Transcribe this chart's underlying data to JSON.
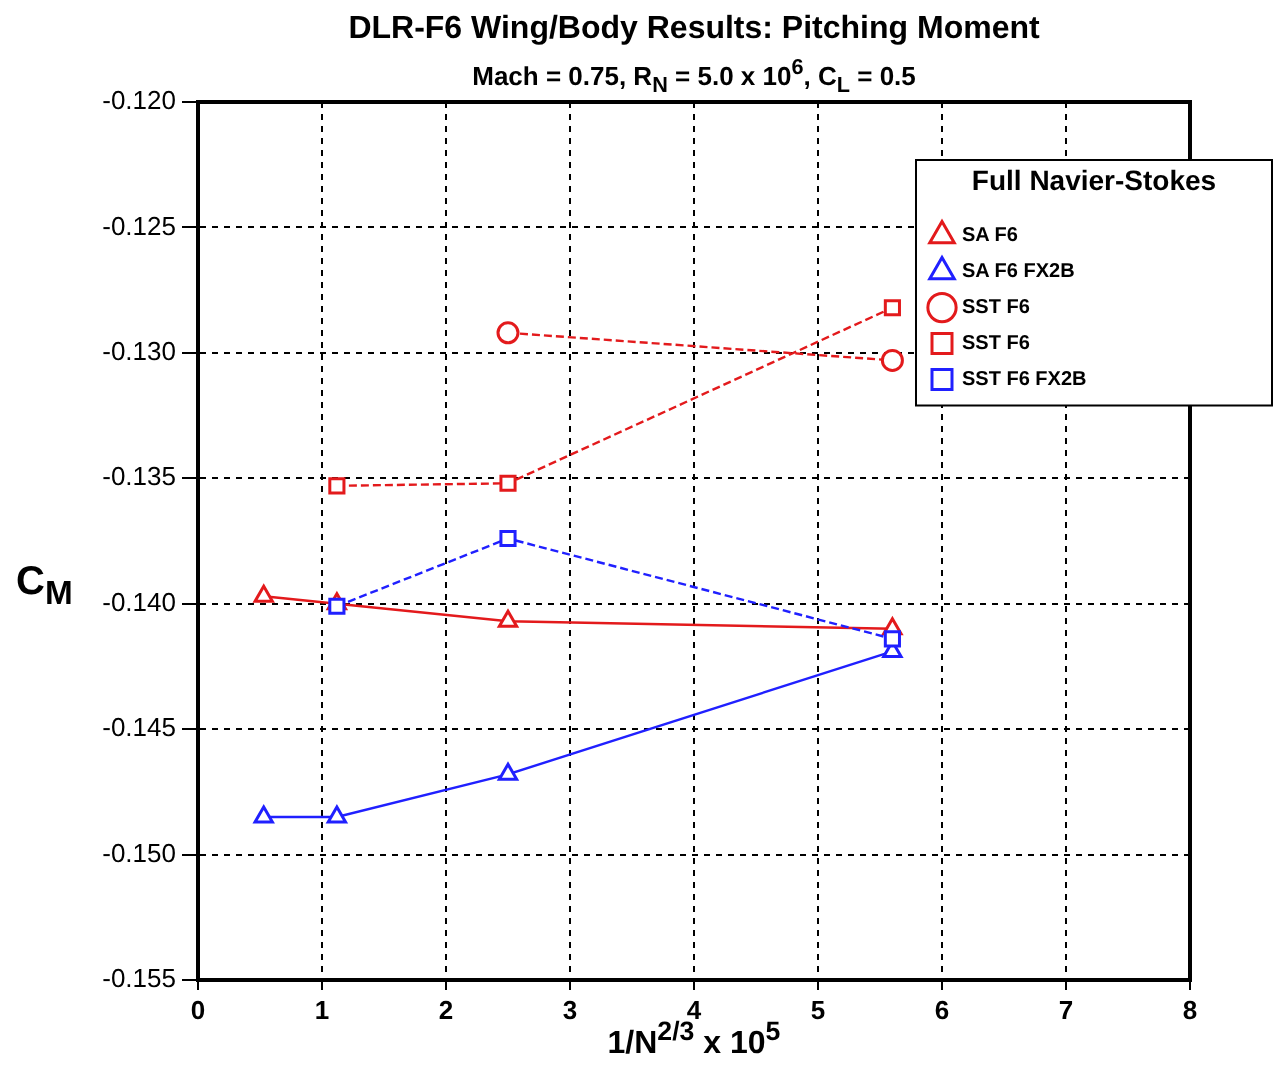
{
  "chart_data": {
    "type": "line",
    "title": "DLR-F6 Wing/Body Results:  Pitching Moment",
    "subtitle": "Mach = 0.75, R$_{N}$ = 5.0 x 10$^{6}$, C$_{L}$ = 0.5",
    "xlabel": "1/N$^{2/3}$ x 10$^{5}$",
    "ylabel": "C$_{M}$",
    "legend_title": "Full Navier-Stokes",
    "legend": "top right",
    "grid": true,
    "xlim": [
      0,
      8
    ],
    "xticks": [
      0,
      1,
      2,
      3,
      4,
      5,
      6,
      7,
      8
    ],
    "ylim": [
      -0.155,
      -0.12
    ],
    "yticks": [
      {
        "value": -0.155,
        "label": "-0.155"
      },
      {
        "value": -0.15,
        "label": "-0.150"
      },
      {
        "value": -0.145,
        "label": "-0.145"
      },
      {
        "value": -0.14,
        "label": "-0.140"
      },
      {
        "value": -0.135,
        "label": "-0.135"
      },
      {
        "value": -0.13,
        "label": "-0.130"
      },
      {
        "value": -0.125,
        "label": "-0.125"
      },
      {
        "value": -0.12,
        "label": "-0.120"
      }
    ],
    "series": [
      {
        "name": "SA F6",
        "color": "#e31a1c",
        "marker": "triangle",
        "line_style": "solid",
        "x": [
          0.53,
          1.12,
          2.5,
          5.6
        ],
        "values": [
          -0.1397,
          -0.14,
          -0.1407,
          -0.141
        ]
      },
      {
        "name": "SA F6 FX2B",
        "color": "#2020ff",
        "marker": "triangle",
        "line_style": "solid",
        "x": [
          0.53,
          1.12,
          2.5,
          5.6
        ],
        "values": [
          -0.1485,
          -0.1485,
          -0.1468,
          -0.1419
        ]
      },
      {
        "name": "SST F6",
        "color": "#e31a1c",
        "marker": "circle",
        "line_style": "dashed",
        "x": [
          2.5,
          5.6
        ],
        "values": [
          -0.1292,
          -0.1303
        ]
      },
      {
        "name": "SST F6",
        "color": "#e31a1c",
        "marker": "square",
        "line_style": "dashed",
        "x": [
          1.12,
          2.5,
          5.6
        ],
        "values": [
          -0.1353,
          -0.1352,
          -0.1282
        ]
      },
      {
        "name": "SST F6 FX2B",
        "color": "#2020ff",
        "marker": "square",
        "line_style": "dashed",
        "x": [
          1.12,
          2.5,
          5.6
        ],
        "values": [
          -0.1401,
          -0.1374,
          -0.1414
        ]
      }
    ]
  }
}
